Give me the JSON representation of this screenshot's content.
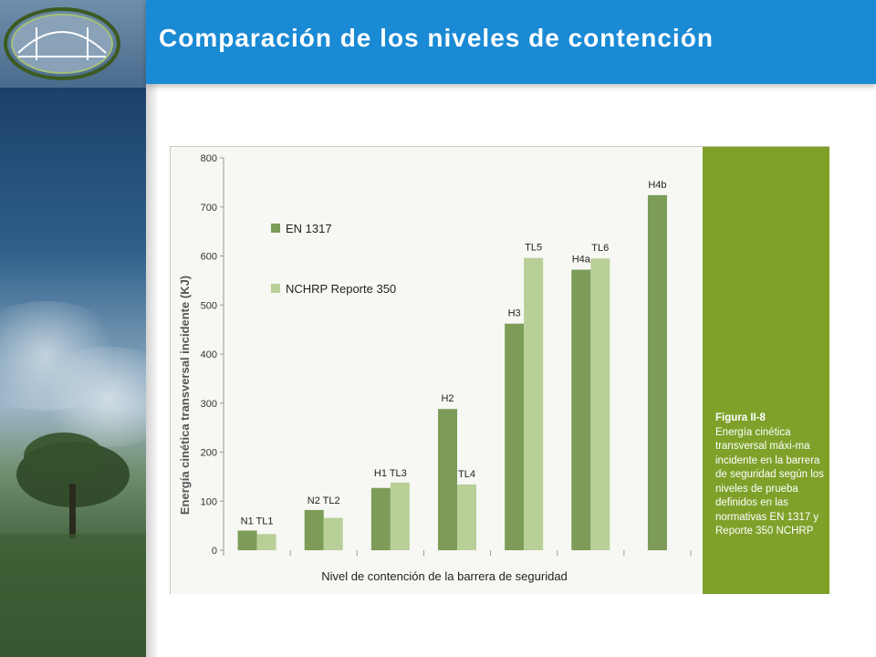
{
  "slide": {
    "title": "Comparación de los niveles de contención"
  },
  "figure": {
    "caption_title": "Figura II-8",
    "caption_text": "Energía cinética transversal máxi-ma incidente en la barrera de seguridad según los niveles de prueba definidos en las normativas EN 1317 y Reporte 350 NCHRP"
  },
  "chart_data": {
    "type": "bar",
    "xlabel": "Nivel de contención de la barrera de seguridad",
    "ylabel": "Energía cinética transversal incidente (KJ)",
    "ylim": [
      0,
      800
    ],
    "yticks": [
      0,
      100,
      200,
      300,
      400,
      500,
      600,
      700,
      800
    ],
    "grid": false,
    "legend_position": "top-left",
    "colors": {
      "EN 1317": "#7c9c58",
      "NCHRP Reporte 350": "#b8cf98"
    },
    "series": [
      {
        "name": "EN 1317"
      },
      {
        "name": "NCHRP Reporte 350"
      }
    ],
    "groups": [
      {
        "bars": [
          {
            "series": "EN 1317",
            "label": "N1",
            "value": 40
          },
          {
            "series": "NCHRP Reporte 350",
            "label": "TL1",
            "value": 33
          }
        ],
        "label": "N1 TL1"
      },
      {
        "bars": [
          {
            "series": "EN 1317",
            "label": "N2",
            "value": 82
          },
          {
            "series": "NCHRP Reporte 350",
            "label": "TL2",
            "value": 66
          }
        ],
        "label": "N2 TL2"
      },
      {
        "bars": [
          {
            "series": "EN 1317",
            "label": "H1",
            "value": 127
          },
          {
            "series": "NCHRP Reporte 350",
            "label": "TL3",
            "value": 138
          }
        ],
        "label": "H1 TL3"
      },
      {
        "bars": [
          {
            "series": "EN 1317",
            "label": "H2",
            "value": 288
          },
          {
            "series": "NCHRP Reporte 350",
            "label": "TL4",
            "value": 134
          }
        ]
      },
      {
        "bars": [
          {
            "series": "EN 1317",
            "label": "H3",
            "value": 462
          },
          {
            "series": "NCHRP Reporte 350",
            "label": "TL5",
            "value": 596
          }
        ]
      },
      {
        "bars": [
          {
            "series": "EN 1317",
            "label": "H4a",
            "value": 572
          },
          {
            "series": "NCHRP Reporte 350",
            "label": "TL6",
            "value": 595
          }
        ]
      },
      {
        "bars": [
          {
            "series": "EN 1317",
            "label": "H4b",
            "value": 724
          }
        ]
      }
    ]
  }
}
